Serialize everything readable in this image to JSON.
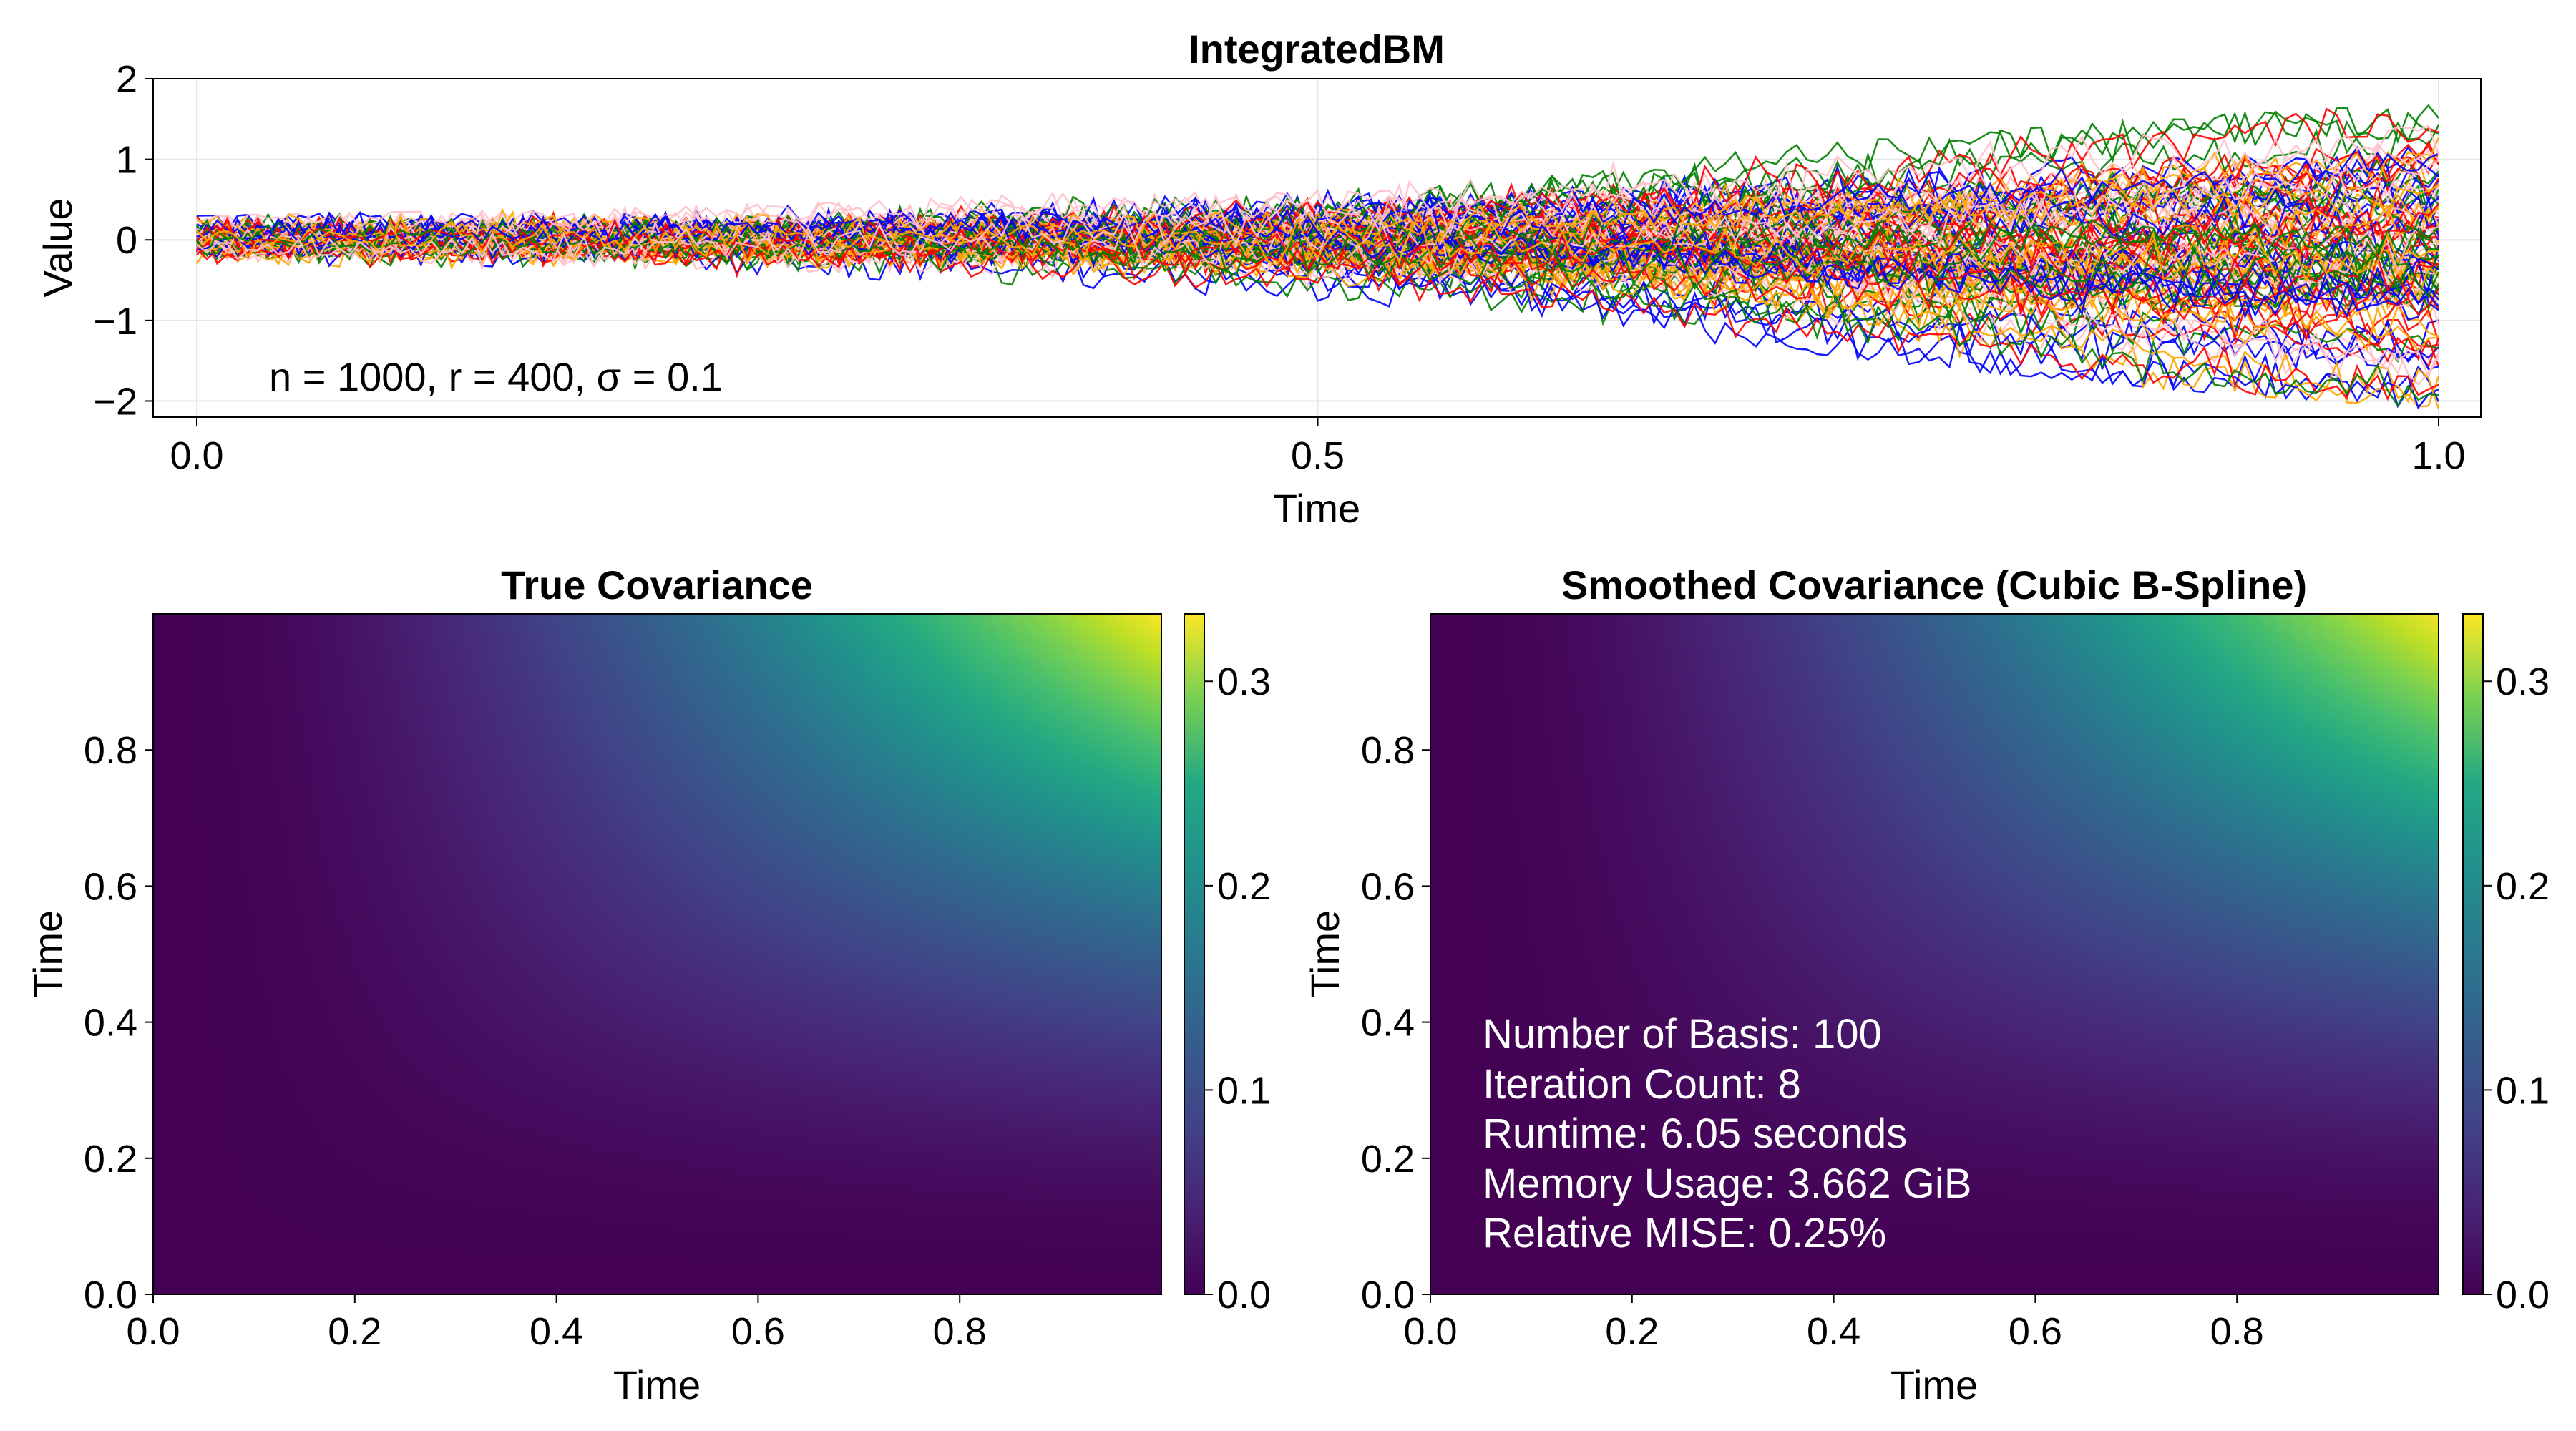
{
  "chart_data": [
    {
      "type": "line",
      "title": "IntegratedBM",
      "xlabel": "Time",
      "ylabel": "Value",
      "xlim": [
        0.0,
        1.0
      ],
      "ylim": [
        -2.2,
        2.0
      ],
      "xticks": [
        "0.0",
        "0.5",
        "1.0"
      ],
      "yticks": [
        "−2",
        "−1",
        "0",
        "1",
        "2"
      ],
      "grid": true,
      "annotation": "n = 1000, r = 400, σ = 0.1",
      "series_colors": [
        "#0000ff",
        "#ff0000",
        "#008000",
        "#ffa500",
        "#ffc0cb"
      ],
      "envelope_x": [
        0.0,
        0.1,
        0.2,
        0.3,
        0.4,
        0.5,
        0.6,
        0.7,
        0.8,
        0.9,
        1.0
      ],
      "envelope_upper": [
        0.3,
        0.35,
        0.4,
        0.48,
        0.6,
        0.75,
        0.95,
        1.15,
        1.35,
        1.55,
        1.7
      ],
      "envelope_lower": [
        -0.3,
        -0.35,
        -0.4,
        -0.5,
        -0.6,
        -0.8,
        -1.05,
        -1.35,
        -1.65,
        -1.9,
        -2.1
      ]
    },
    {
      "type": "heatmap",
      "title": "True Covariance",
      "xlabel": "Time",
      "ylabel": "Time",
      "xlim": [
        0.0,
        1.0
      ],
      "ylim": [
        0.0,
        1.0
      ],
      "xticks": [
        "0.0",
        "0.2",
        "0.4",
        "0.6",
        "0.8"
      ],
      "yticks": [
        "0.0",
        "0.2",
        "0.4",
        "0.6",
        "0.8"
      ],
      "colorbar_ticks": [
        "0.0",
        "0.1",
        "0.2",
        "0.3"
      ],
      "colorbar_range": [
        0.0,
        0.333
      ],
      "colormap": "viridis"
    },
    {
      "type": "heatmap",
      "title": "Smoothed Covariance (Cubic B-Spline)",
      "xlabel": "Time",
      "ylabel": "Time",
      "xlim": [
        0.0,
        1.0
      ],
      "ylim": [
        0.0,
        1.0
      ],
      "xticks": [
        "0.0",
        "0.2",
        "0.4",
        "0.6",
        "0.8"
      ],
      "yticks": [
        "0.0",
        "0.2",
        "0.4",
        "0.6",
        "0.8"
      ],
      "colorbar_ticks": [
        "0.0",
        "0.1",
        "0.2",
        "0.3"
      ],
      "colorbar_range": [
        0.0,
        0.333
      ],
      "colormap": "viridis",
      "annotations": [
        "Number of Basis: 100",
        "Iteration Count: 8",
        "Runtime: 6.05 seconds",
        "Memory Usage: 3.662 GiB",
        "Relative MISE: 0.25%"
      ]
    }
  ]
}
